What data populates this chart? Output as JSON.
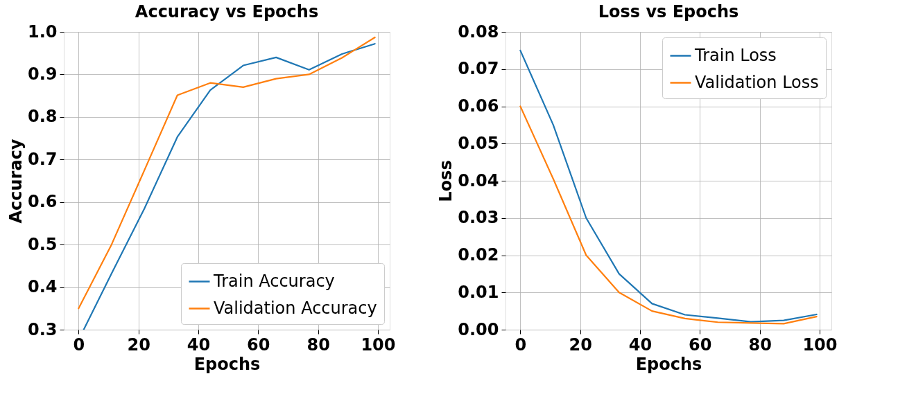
{
  "chart_data": [
    {
      "type": "line",
      "title": "Accuracy vs Epochs",
      "xlabel": "Epochs",
      "ylabel": "Accuracy",
      "x": [
        0,
        11,
        22,
        33,
        44,
        55,
        66,
        77,
        88,
        99
      ],
      "series": [
        {
          "name": "Train Accuracy",
          "color": "#1f77b4",
          "x": [
            1.7,
            11,
            22,
            33,
            44,
            55,
            66,
            77,
            88,
            99
          ],
          "values": [
            0.3,
            0.432,
            0.585,
            0.753,
            0.863,
            0.921,
            0.94,
            0.911,
            0.948,
            0.972
          ]
        },
        {
          "name": "Validation Accuracy",
          "color": "#ff7f0e",
          "values": [
            0.35,
            0.5,
            0.675,
            0.851,
            0.88,
            0.87,
            0.89,
            0.9,
            0.939,
            0.987
          ]
        }
      ],
      "xlim": [
        -4.95,
        103.95
      ],
      "xticks": [
        0,
        20,
        40,
        60,
        80,
        100
      ],
      "ylim": [
        0.3,
        1.0
      ],
      "yticks": [
        0.3,
        0.4,
        0.5,
        0.6,
        0.7,
        0.8,
        0.9,
        {
          "value": 1.0,
          "label": "1.0"
        }
      ],
      "grid": true,
      "legend": "bottom right",
      "marker": "none",
      "line_style": "solid"
    },
    {
      "type": "line",
      "title": "Loss vs Epochs",
      "xlabel": "Epochs",
      "ylabel": "Loss",
      "x": [
        0,
        11,
        22,
        33,
        44,
        55,
        66,
        77,
        88,
        99
      ],
      "series": [
        {
          "name": "Train Loss",
          "color": "#1f77b4",
          "values": [
            0.075,
            0.055,
            0.03,
            0.015,
            0.007,
            0.004,
            0.0031,
            0.0021,
            0.0025,
            0.0041
          ]
        },
        {
          "name": "Validation Loss",
          "color": "#ff7f0e",
          "values": [
            0.06,
            0.0405,
            0.02,
            0.01,
            0.005,
            0.003,
            0.002,
            0.0018,
            0.0016,
            0.0035
          ]
        }
      ],
      "xlim": [
        -4.95,
        103.95
      ],
      "xticks": [
        0,
        20,
        40,
        60,
        80,
        100
      ],
      "ylim": [
        0,
        0.08
      ],
      "yticks": [
        {
          "value": 0,
          "label": "0.00"
        },
        0.01,
        0.02,
        0.03,
        0.04,
        0.05,
        0.06,
        0.07,
        0.08
      ],
      "grid": true,
      "legend": "top right",
      "marker": "none",
      "line_style": "solid"
    }
  ]
}
